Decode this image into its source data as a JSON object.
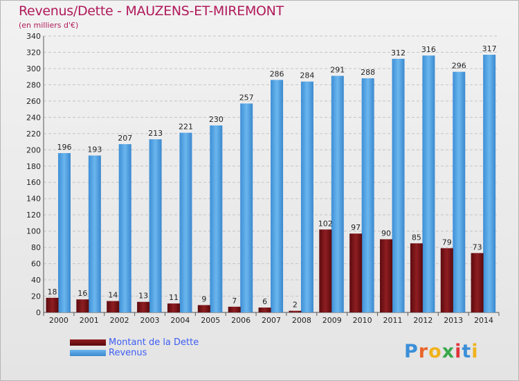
{
  "chart_data": {
    "type": "bar",
    "title": "Revenus/Dette - MAUZENS-ET-MIREMONT",
    "subtitle": "(en milliers d'€)",
    "categories": [
      "2000",
      "2001",
      "2002",
      "2003",
      "2004",
      "2005",
      "2006",
      "2007",
      "2008",
      "2009",
      "2010",
      "2011",
      "2012",
      "2013",
      "2014"
    ],
    "series": [
      {
        "name": "Montant de la Dette",
        "color": "#7a0d12",
        "values": [
          18,
          16,
          14,
          13,
          11,
          9,
          7,
          6,
          2,
          102,
          97,
          90,
          85,
          79,
          73
        ]
      },
      {
        "name": "Revenus",
        "color": "#4a9de0",
        "values": [
          196,
          193,
          207,
          213,
          221,
          230,
          257,
          286,
          284,
          291,
          288,
          312,
          316,
          296,
          317
        ]
      }
    ],
    "ylim": [
      0,
      340
    ],
    "yticks": [
      0,
      20,
      40,
      60,
      80,
      100,
      120,
      140,
      160,
      180,
      200,
      220,
      240,
      260,
      280,
      300,
      320,
      340
    ],
    "grid": true,
    "legend_position": "bottom-left"
  },
  "logo": {
    "text": "Proxiti"
  }
}
